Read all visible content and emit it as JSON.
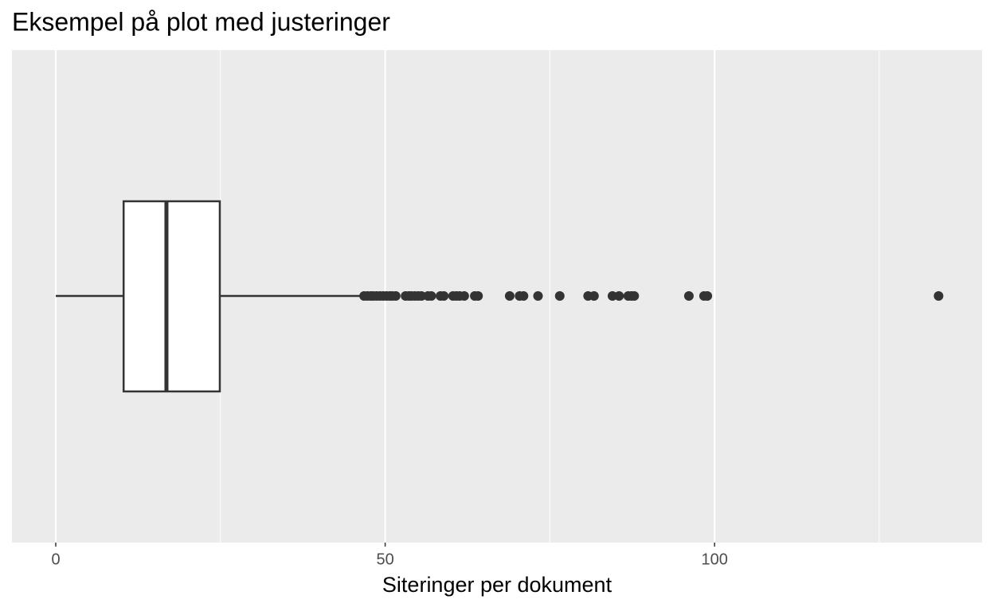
{
  "chart_data": {
    "type": "boxplot",
    "title": "Eksempel på plot med justeringer",
    "xlabel": "Siteringer per dokument",
    "min": 0,
    "q1": 10.3,
    "median": 16.8,
    "q3": 24.9,
    "max": 46.5,
    "outliers": [
      46.8,
      47.3,
      47.8,
      48.2,
      48.7,
      49.2,
      49.7,
      50.2,
      50.7,
      51.1,
      51.6,
      53.1,
      53.6,
      54.0,
      54.5,
      55.0,
      55.5,
      56.5,
      57.0,
      58.4,
      58.9,
      60.3,
      60.8,
      61.3,
      62.0,
      63.6,
      64.1,
      68.9,
      70.4,
      71.0,
      73.2,
      76.5,
      80.8,
      81.7,
      84.5,
      85.5,
      86.9,
      87.4,
      87.8,
      96.1,
      98.4,
      98.9,
      134.0
    ],
    "xlim": [
      -6.65,
      140.6
    ],
    "xticks": [
      0,
      50,
      100
    ],
    "xminor": [
      25,
      75,
      125
    ],
    "grid": true,
    "box_fill": "#ffffff",
    "color": "#333333"
  }
}
